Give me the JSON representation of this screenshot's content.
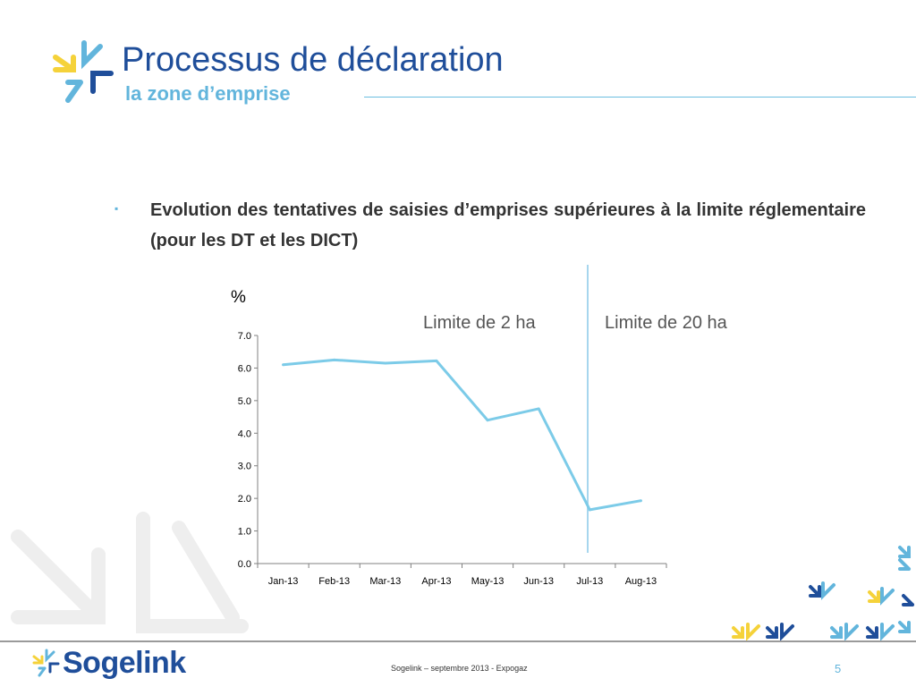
{
  "header": {
    "title": "Processus de déclaration",
    "subtitle": "la zone d’emprise",
    "logo_icon": "sogelink-arrows-icon"
  },
  "content": {
    "bullet_marker": "▪",
    "bullet_text": "Evolution des tentatives de saisies d’emprises supérieures à la limite réglementaire (pour les DT et les DICT)"
  },
  "chart": {
    "unit_label": "%",
    "zone_left_label": "Limite de 2 ha",
    "zone_right_label": "Limite de 20 ha"
  },
  "chart_data": {
    "type": "line",
    "categories": [
      "Jan-13",
      "Feb-13",
      "Mar-13",
      "Apr-13",
      "May-13",
      "Jun-13",
      "Jul-13",
      "Aug-13"
    ],
    "values": [
      6.1,
      6.25,
      6.15,
      6.22,
      4.4,
      4.75,
      1.65,
      1.93
    ],
    "ylabel": "%",
    "ylim": [
      0,
      7
    ],
    "yticks": [
      "0.0",
      "1.0",
      "2.0",
      "3.0",
      "4.0",
      "5.0",
      "6.0",
      "7.0"
    ],
    "grid": false,
    "series_color": "#7ccbe8",
    "divider_after_category": "Jun-13",
    "annotations": [
      "Limite de 2 ha",
      "Limite de 20 ha"
    ]
  },
  "footer": {
    "brand": "Sogelink",
    "text": "Sogelink – septembre 2013 - Expogaz",
    "page_number": "5",
    "logo_icon": "sogelink-arrows-icon"
  },
  "colors": {
    "title_blue": "#1f4e9a",
    "accent_light_blue": "#62b5dc",
    "accent_yellow": "#f5d23a",
    "watermark_gray": "#eeeeee"
  }
}
